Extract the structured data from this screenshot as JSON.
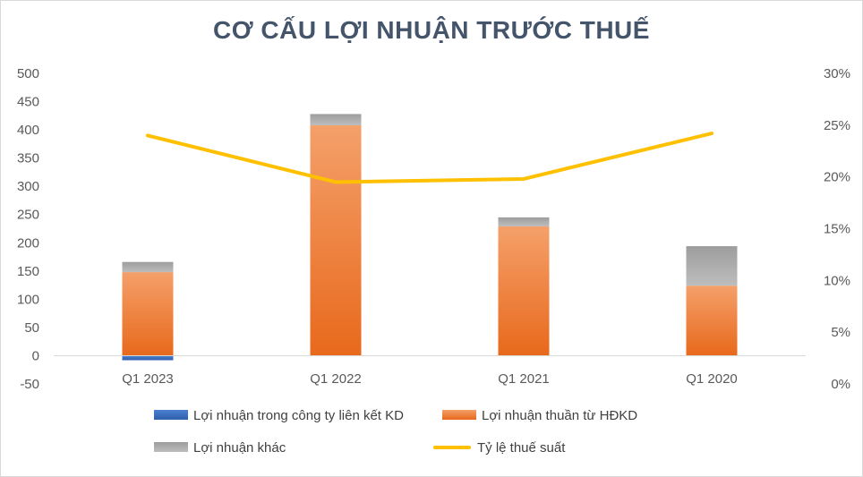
{
  "chart_data": {
    "type": "bar",
    "title": "CƠ CẤU LỢI NHUẬN TRƯỚC THUẾ",
    "categories": [
      "Q1 2023",
      "Q1 2022",
      "Q1 2021",
      "Q1 2020"
    ],
    "series": [
      {
        "name": "Lợi nhuận trong công ty liên kết KD",
        "kind": "stacked-bar",
        "color": "#4472c4",
        "values": [
          -8,
          0,
          0,
          0
        ]
      },
      {
        "name": "Lợi nhuận thuần từ HĐKD",
        "kind": "stacked-bar",
        "color": "#ed7d31",
        "values": [
          148,
          408,
          229,
          124
        ]
      },
      {
        "name": "Lợi nhuận khác",
        "kind": "stacked-bar",
        "color": "#a5a5a5",
        "values": [
          18,
          20,
          16,
          70
        ]
      },
      {
        "name": "Tỷ lệ thuế suất",
        "kind": "line",
        "axis": "right",
        "color": "#ffc000",
        "values": [
          24.0,
          19.5,
          19.8,
          24.2
        ]
      }
    ],
    "y_left": {
      "min": -50,
      "max": 500,
      "step": 50,
      "ticks": [
        "500",
        "450",
        "400",
        "350",
        "300",
        "250",
        "200",
        "150",
        "100",
        "50",
        "0",
        "-50"
      ]
    },
    "y_right": {
      "min": 0,
      "max": 30,
      "step": 5,
      "ticks": [
        "30%",
        "25%",
        "20%",
        "15%",
        "10%",
        "5%",
        "0%"
      ]
    },
    "grid": false,
    "legend_position": "bottom"
  }
}
